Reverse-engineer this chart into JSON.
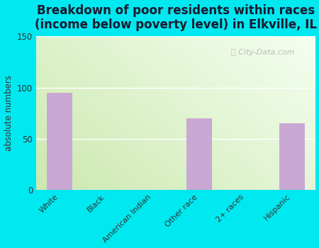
{
  "title": "Breakdown of poor residents within races\n(income below poverty level) in Elkville, IL",
  "categories": [
    "White",
    "Black",
    "American Indian",
    "Other race",
    "2+ races",
    "Hispanic"
  ],
  "values": [
    95,
    0,
    0,
    70,
    0,
    65
  ],
  "bar_color": "#c9a8d4",
  "ylabel": "absolute numbers",
  "ylim": [
    0,
    150
  ],
  "yticks": [
    0,
    50,
    100,
    150
  ],
  "outer_bg": "#00e8f0",
  "title_fontsize": 12,
  "watermark": "City-Data.com",
  "grad_colors": [
    "#f8fff0",
    "#cce8b0"
  ],
  "title_color": "#1a1a2e"
}
